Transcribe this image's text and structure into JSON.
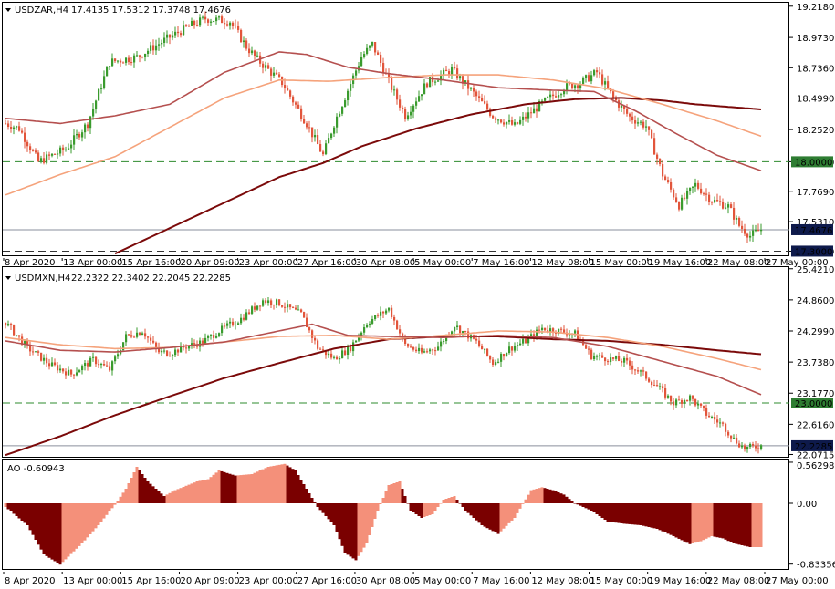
{
  "colors": {
    "bull": "#3a9b2e",
    "bear": "#e2553b",
    "ma_slow": "#7b0a0a",
    "ma_mid": "#b5504f",
    "ma_fast": "#f5a37c",
    "level_line": "#2e8b2e",
    "level_bg": "#2e7d32",
    "price_bg": "#0e1a4b",
    "ao_dark": "#7a0000",
    "ao_light": "#f4907a"
  },
  "chart_data": [
    {
      "type": "candlestick",
      "title": "USDZAR,H4",
      "ohlc_text": "17.4135 17.5312 17.3748 17.4676",
      "last_price": "17.4676",
      "level": {
        "value": 18.0,
        "label": "18.0000"
      },
      "low_marker": {
        "value": 17.3,
        "label": "17.3000"
      },
      "y_ticks": [
        "19.2180",
        "18.9730",
        "18.7360",
        "18.4990",
        "18.2520",
        "18.0000",
        "17.7690",
        "17.5310",
        "17.3000"
      ],
      "ylim": [
        17.2675,
        19.245
      ],
      "x_labels": [
        "8 Apr 2020",
        "13 Apr 00:00",
        "15 Apr 16:00",
        "20 Apr 09:00",
        "23 Apr 00:00",
        "27 Apr 16:00",
        "30 Apr 08:00",
        "5 May 00:00",
        "7 May 16:00",
        "12 May 08:00",
        "15 May 00:00",
        "19 May 16:00",
        "22 May 08:00",
        "27 May 00:00"
      ],
      "close_anchors": [
        [
          0,
          18.3
        ],
        [
          5,
          18.26
        ],
        [
          12,
          18.0
        ],
        [
          22,
          18.1
        ],
        [
          30,
          18.3
        ],
        [
          38,
          18.78
        ],
        [
          48,
          18.82
        ],
        [
          58,
          18.95
        ],
        [
          66,
          19.05
        ],
        [
          73,
          19.12
        ],
        [
          82,
          19.1
        ],
        [
          88,
          18.9
        ],
        [
          92,
          18.8
        ],
        [
          101,
          18.62
        ],
        [
          110,
          18.3
        ],
        [
          116,
          18.05
        ],
        [
          120,
          18.3
        ],
        [
          130,
          18.82
        ],
        [
          134,
          18.92
        ],
        [
          141,
          18.58
        ],
        [
          146,
          18.36
        ],
        [
          154,
          18.62
        ],
        [
          163,
          18.72
        ],
        [
          170,
          18.56
        ],
        [
          178,
          18.36
        ],
        [
          186,
          18.28
        ],
        [
          195,
          18.44
        ],
        [
          204,
          18.58
        ],
        [
          210,
          18.62
        ],
        [
          216,
          18.7
        ],
        [
          222,
          18.5
        ],
        [
          228,
          18.35
        ],
        [
          234,
          18.28
        ],
        [
          240,
          17.9
        ],
        [
          246,
          17.66
        ],
        [
          252,
          17.82
        ],
        [
          258,
          17.7
        ],
        [
          264,
          17.65
        ],
        [
          268,
          17.5
        ],
        [
          272,
          17.42
        ],
        [
          276,
          17.47
        ]
      ],
      "sma_slow": [
        [
          40,
          17.28
        ],
        [
          60,
          17.48
        ],
        [
          80,
          17.68
        ],
        [
          100,
          17.88
        ],
        [
          116,
          17.99
        ],
        [
          130,
          18.12
        ],
        [
          150,
          18.26
        ],
        [
          170,
          18.37
        ],
        [
          190,
          18.45
        ],
        [
          208,
          18.49
        ],
        [
          225,
          18.5
        ],
        [
          240,
          18.48
        ],
        [
          252,
          18.45
        ],
        [
          276,
          18.41
        ]
      ],
      "sma_fast": [
        [
          0,
          17.74
        ],
        [
          20,
          17.9
        ],
        [
          40,
          18.04
        ],
        [
          60,
          18.27
        ],
        [
          80,
          18.5
        ],
        [
          100,
          18.64
        ],
        [
          118,
          18.63
        ],
        [
          140,
          18.66
        ],
        [
          160,
          18.68
        ],
        [
          180,
          18.68
        ],
        [
          200,
          18.64
        ],
        [
          220,
          18.57
        ],
        [
          240,
          18.45
        ],
        [
          260,
          18.32
        ],
        [
          276,
          18.2
        ]
      ],
      "sma_mid": [
        [
          0,
          18.34
        ],
        [
          20,
          18.3
        ],
        [
          40,
          18.36
        ],
        [
          60,
          18.45
        ],
        [
          80,
          18.7
        ],
        [
          100,
          18.86
        ],
        [
          110,
          18.84
        ],
        [
          125,
          18.74
        ],
        [
          140,
          18.69
        ],
        [
          160,
          18.64
        ],
        [
          180,
          18.58
        ],
        [
          200,
          18.56
        ],
        [
          215,
          18.55
        ],
        [
          230,
          18.4
        ],
        [
          245,
          18.22
        ],
        [
          260,
          18.05
        ],
        [
          276,
          17.93
        ]
      ]
    },
    {
      "type": "candlestick",
      "title": "USDMXN,H4",
      "ohlc_text": "22.2322 22.3402 22.2045 22.2285",
      "last_price": "22.2285",
      "level": {
        "value": 23.0,
        "label": "23.0000"
      },
      "y_ticks": [
        "25.4210",
        "24.8600",
        "24.2990",
        "23.7380",
        "23.1770",
        "22.6160",
        "22.0715"
      ],
      "ylim": [
        22.03,
        25.45
      ],
      "close_anchors": [
        [
          0,
          24.45
        ],
        [
          8,
          24.0
        ],
        [
          16,
          23.7
        ],
        [
          24,
          23.52
        ],
        [
          32,
          23.78
        ],
        [
          38,
          23.6
        ],
        [
          44,
          24.2
        ],
        [
          50,
          24.3
        ],
        [
          56,
          23.92
        ],
        [
          60,
          23.9
        ],
        [
          66,
          24.02
        ],
        [
          72,
          24.1
        ],
        [
          78,
          24.3
        ],
        [
          86,
          24.52
        ],
        [
          94,
          24.85
        ],
        [
          100,
          24.8
        ],
        [
          108,
          24.6
        ],
        [
          114,
          24.0
        ],
        [
          120,
          23.8
        ],
        [
          126,
          24.0
        ],
        [
          132,
          24.45
        ],
        [
          140,
          24.7
        ],
        [
          146,
          24.05
        ],
        [
          152,
          23.9
        ],
        [
          158,
          24.02
        ],
        [
          164,
          24.4
        ],
        [
          172,
          24.1
        ],
        [
          178,
          23.72
        ],
        [
          184,
          23.98
        ],
        [
          190,
          24.12
        ],
        [
          196,
          24.35
        ],
        [
          202,
          24.3
        ],
        [
          208,
          24.25
        ],
        [
          214,
          23.85
        ],
        [
          220,
          23.8
        ],
        [
          226,
          23.75
        ],
        [
          232,
          23.55
        ],
        [
          238,
          23.3
        ],
        [
          244,
          23.0
        ],
        [
          250,
          23.1
        ],
        [
          256,
          22.8
        ],
        [
          262,
          22.6
        ],
        [
          266,
          22.35
        ],
        [
          270,
          22.18
        ],
        [
          276,
          22.23
        ]
      ],
      "sma_slow": [
        [
          0,
          22.06
        ],
        [
          20,
          22.4
        ],
        [
          40,
          22.78
        ],
        [
          60,
          23.12
        ],
        [
          80,
          23.45
        ],
        [
          100,
          23.72
        ],
        [
          120,
          23.98
        ],
        [
          140,
          24.15
        ],
        [
          160,
          24.2
        ],
        [
          180,
          24.2
        ],
        [
          200,
          24.15
        ],
        [
          220,
          24.12
        ],
        [
          240,
          24.05
        ],
        [
          260,
          23.95
        ],
        [
          276,
          23.88
        ]
      ],
      "sma_fast": [
        [
          0,
          24.18
        ],
        [
          20,
          24.05
        ],
        [
          40,
          23.98
        ],
        [
          60,
          24.0
        ],
        [
          80,
          24.1
        ],
        [
          100,
          24.2
        ],
        [
          120,
          24.22
        ],
        [
          140,
          24.15
        ],
        [
          160,
          24.22
        ],
        [
          180,
          24.3
        ],
        [
          200,
          24.28
        ],
        [
          220,
          24.18
        ],
        [
          240,
          24.02
        ],
        [
          260,
          23.8
        ],
        [
          276,
          23.6
        ]
      ],
      "sma_mid": [
        [
          0,
          24.12
        ],
        [
          20,
          23.95
        ],
        [
          40,
          23.92
        ],
        [
          60,
          24.0
        ],
        [
          80,
          24.1
        ],
        [
          100,
          24.3
        ],
        [
          112,
          24.42
        ],
        [
          125,
          24.22
        ],
        [
          140,
          24.2
        ],
        [
          160,
          24.18
        ],
        [
          180,
          24.22
        ],
        [
          200,
          24.18
        ],
        [
          220,
          24.02
        ],
        [
          240,
          23.75
        ],
        [
          260,
          23.48
        ],
        [
          276,
          23.15
        ]
      ]
    },
    {
      "type": "bar",
      "title": "AO -0.60943",
      "y_ticks": [
        "0.56298",
        "0.00",
        "-0.83356"
      ],
      "ylim": [
        -0.9,
        0.6
      ],
      "value_anchors": [
        [
          0,
          -0.05
        ],
        [
          8,
          -0.3
        ],
        [
          14,
          -0.7
        ],
        [
          20,
          -0.84
        ],
        [
          28,
          -0.55
        ],
        [
          34,
          -0.3
        ],
        [
          40,
          -0.02
        ],
        [
          44,
          0.2
        ],
        [
          48,
          0.5
        ],
        [
          52,
          0.3
        ],
        [
          58,
          0.1
        ],
        [
          62,
          0.18
        ],
        [
          70,
          0.3
        ],
        [
          74,
          0.33
        ],
        [
          78,
          0.45
        ],
        [
          84,
          0.38
        ],
        [
          90,
          0.4
        ],
        [
          96,
          0.5
        ],
        [
          102,
          0.54
        ],
        [
          106,
          0.45
        ],
        [
          110,
          0.2
        ],
        [
          114,
          -0.05
        ],
        [
          120,
          -0.3
        ],
        [
          124,
          -0.68
        ],
        [
          128,
          -0.78
        ],
        [
          132,
          -0.55
        ],
        [
          136,
          -0.1
        ],
        [
          140,
          0.25
        ],
        [
          144,
          0.3
        ],
        [
          148,
          -0.1
        ],
        [
          152,
          -0.2
        ],
        [
          156,
          -0.15
        ],
        [
          160,
          0.05
        ],
        [
          164,
          0.1
        ],
        [
          168,
          -0.1
        ],
        [
          174,
          -0.3
        ],
        [
          180,
          -0.42
        ],
        [
          186,
          -0.2
        ],
        [
          192,
          0.18
        ],
        [
          196,
          0.22
        ],
        [
          200,
          0.18
        ],
        [
          204,
          0.12
        ],
        [
          208,
          0.0
        ],
        [
          214,
          -0.1
        ],
        [
          220,
          -0.25
        ],
        [
          226,
          -0.28
        ],
        [
          232,
          -0.3
        ],
        [
          238,
          -0.35
        ],
        [
          244,
          -0.45
        ],
        [
          250,
          -0.56
        ],
        [
          254,
          -0.52
        ],
        [
          258,
          -0.45
        ],
        [
          262,
          -0.48
        ],
        [
          266,
          -0.55
        ],
        [
          272,
          -0.6
        ],
        [
          276,
          -0.6
        ]
      ]
    }
  ]
}
